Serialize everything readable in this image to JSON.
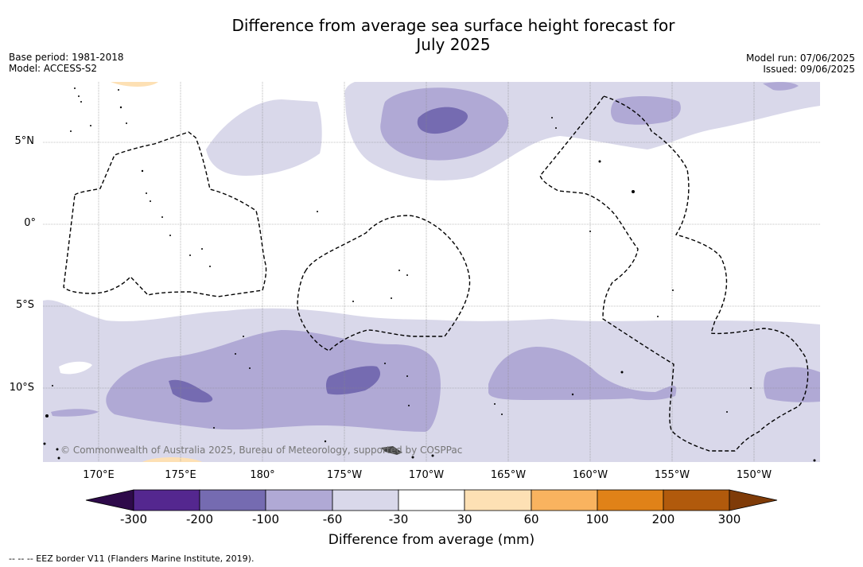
{
  "title": {
    "line1": "Difference from average sea surface height forecast for",
    "line2": "July 2025"
  },
  "meta_left": {
    "base_period": "Base period: 1981-2018",
    "model": "Model: ACCESS-S2"
  },
  "meta_right": {
    "model_run": "Model run: 07/06/2025",
    "issued": "Issued: 09/06/2025"
  },
  "copyright": "© Commonwealth of Australia 2025, Bureau of Meteorology, supported by COSPPac",
  "lat_labels": [
    "5°N",
    "0°",
    "5°S",
    "10°S"
  ],
  "lon_labels": [
    "170°E",
    "175°E",
    "180°",
    "175°W",
    "170°W",
    "165°W",
    "160°W",
    "155°W",
    "150°W"
  ],
  "colorbar": {
    "ticks": [
      "-300",
      "-200",
      "-100",
      "-60",
      "-30",
      "30",
      "60",
      "100",
      "200",
      "300"
    ],
    "colors": [
      "#2e0a4a",
      "#54278f",
      "#756bb1",
      "#b0a9d5",
      "#d9d8ea",
      "#ffffff",
      "#fde0b4",
      "#f9b35f",
      "#e08218",
      "#b15a0c",
      "#7f3b08"
    ],
    "title": "Difference from average (mm)"
  },
  "footer": "--  --  -- EEZ border V11 (Flanders Marine Institute, 2019)."
}
